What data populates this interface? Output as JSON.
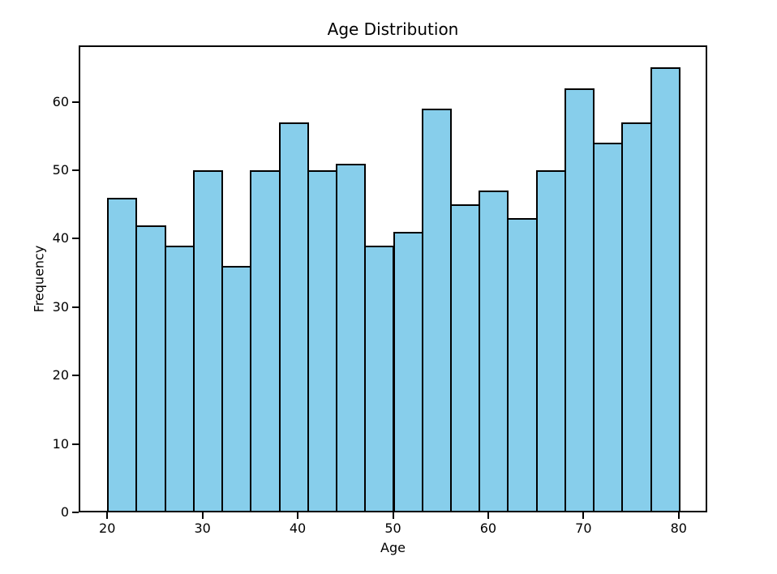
{
  "chart_data": {
    "type": "bar",
    "subtype": "histogram",
    "title": "Age Distribution",
    "xlabel": "Age",
    "ylabel": "Frequency",
    "bin_edges": [
      20,
      23,
      26,
      29,
      32,
      35,
      38,
      41,
      44,
      47,
      50,
      53,
      56,
      59,
      62,
      65,
      68,
      71,
      74,
      77,
      80
    ],
    "values": [
      46,
      42,
      39,
      50,
      36,
      50,
      57,
      50,
      51,
      39,
      41,
      59,
      45,
      47,
      43,
      50,
      62,
      54,
      57,
      65
    ],
    "x_ticks": [
      20,
      30,
      40,
      50,
      60,
      70,
      80
    ],
    "y_ticks": [
      0,
      10,
      20,
      30,
      40,
      50,
      60
    ],
    "xlim": [
      17,
      83
    ],
    "ylim": [
      0,
      68.25
    ],
    "grid": false,
    "legend_position": "none",
    "colors": {
      "bar_fill": "#87CEEB",
      "bar_edge": "#000000",
      "text": "#000000",
      "spine": "#000000",
      "background": "#FFFFFF"
    }
  }
}
